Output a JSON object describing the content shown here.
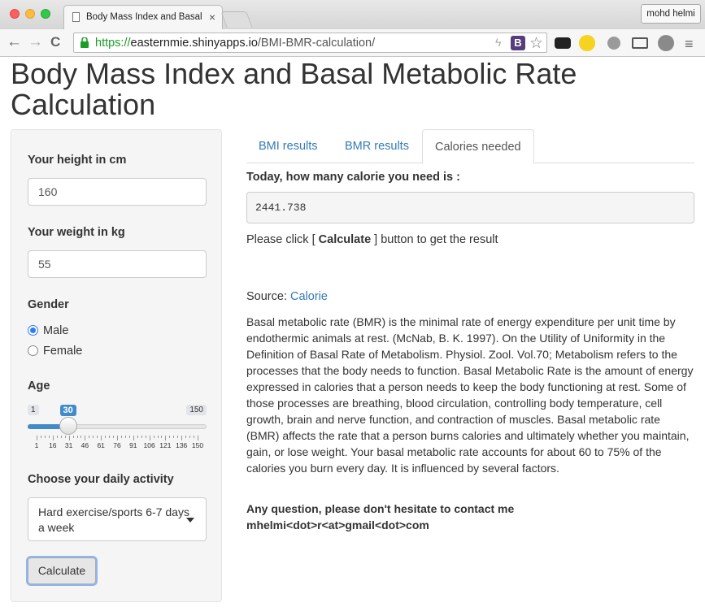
{
  "browser": {
    "tab_title": "Body Mass Index and Basal Metab",
    "tab_close": "×",
    "profile_name": "mohd helmi",
    "url_scheme": "https://",
    "url_host": "easternmie.shinyapps.io",
    "url_path": "/BMI-BMR-calculation/",
    "back_glyph": "←",
    "forward_glyph": "→",
    "reload_glyph": "C",
    "menu_glyph": "≡",
    "bolt_glyph": "ϟ",
    "badge_glyph": "B",
    "star_glyph": "☆"
  },
  "page": {
    "title": "Body Mass Index and Basal Metabolic Rate Calculation"
  },
  "sidebar": {
    "height_label": "Your height in cm",
    "height_value": "160",
    "weight_label": "Your weight in kg",
    "weight_value": "55",
    "gender_label": "Gender",
    "gender_options": [
      "Male",
      "Female"
    ],
    "gender_selected": "Male",
    "age_label": "Age",
    "age_min": "1",
    "age_max": "150",
    "age_value": "30",
    "age_ticks": [
      "1",
      "16",
      "31",
      "46",
      "61",
      "76",
      "91",
      "106",
      "121",
      "136",
      "150"
    ],
    "activity_label": "Choose your daily activity",
    "activity_value": "Hard exercise/sports 6-7 days a week",
    "calculate_label": "Calculate"
  },
  "main": {
    "tabs": [
      {
        "label": "BMI results",
        "active": false
      },
      {
        "label": "BMR results",
        "active": false
      },
      {
        "label": "Calories needed",
        "active": true
      }
    ],
    "heading": "Today, how many calorie you need is :",
    "result": "2441.738",
    "note_prefix": "Please click [ ",
    "note_bold": "Calculate",
    "note_suffix": " ] button to get the result",
    "source_prefix": "Source: ",
    "source_link": "Calorie",
    "paragraph": "Basal metabolic rate (BMR) is the minimal rate of energy expenditure per unit time by endothermic animals at rest. (McNab, B. K. 1997). On the Utility of Uniformity in the Definition of Basal Rate of Metabolism. Physiol. Zool. Vol.70; Metabolism refers to the processes that the body needs to function. Basal Metabolic Rate is the amount of energy expressed in calories that a person needs to keep the body functioning at rest. Some of those processes are breathing, blood circulation, controlling body temperature, cell growth, brain and nerve function, and contraction of muscles. Basal metabolic rate (BMR) affects the rate that a person burns calories and ultimately whether you maintain, gain, or lose weight. Your basal metabolic rate accounts for about 60 to 75% of the calories you burn every day. It is influenced by several factors.",
    "contact_line1": "Any question, please don't hesitate to contact me",
    "contact_line2": "mhelmi<dot>r<at>gmail<dot>com"
  },
  "colors": {
    "link": "#337ab7",
    "slider_accent": "#428bca",
    "url_green": "#1a9e28"
  }
}
